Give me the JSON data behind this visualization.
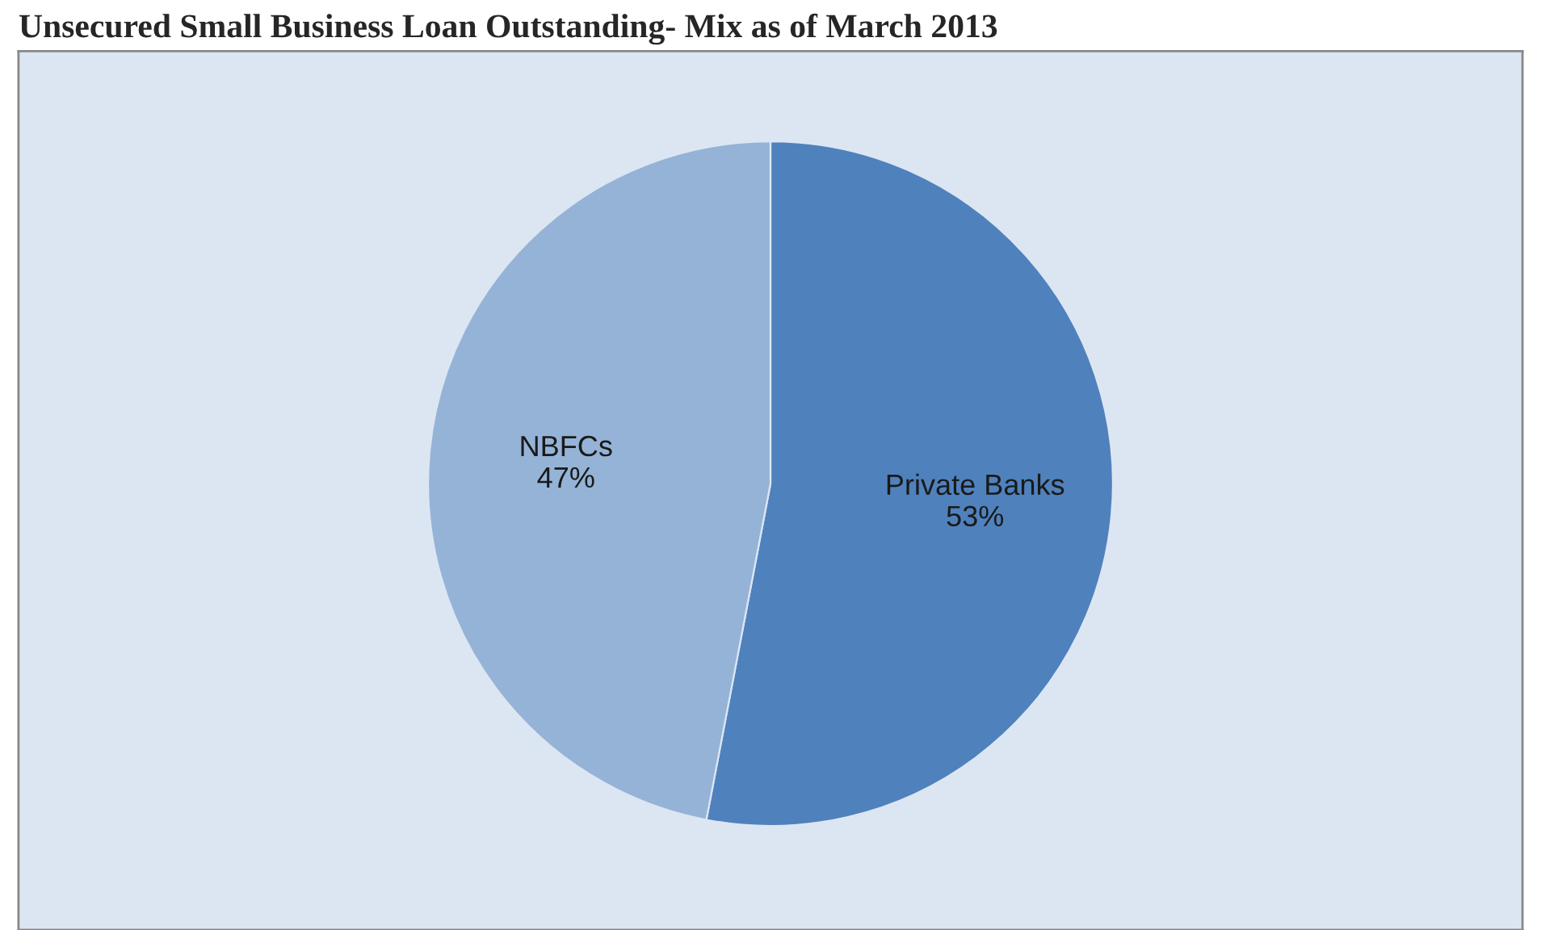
{
  "chart_data": {
    "type": "pie",
    "title": "Unsecured Small Business Loan Outstanding- Mix as of March 2013",
    "categories": [
      "Private Banks",
      "NBFCs"
    ],
    "values": [
      53,
      47
    ],
    "colors": [
      "#4f81bd",
      "#95b3d7"
    ],
    "value_labels": [
      "53%",
      "47%"
    ],
    "legend": false
  }
}
